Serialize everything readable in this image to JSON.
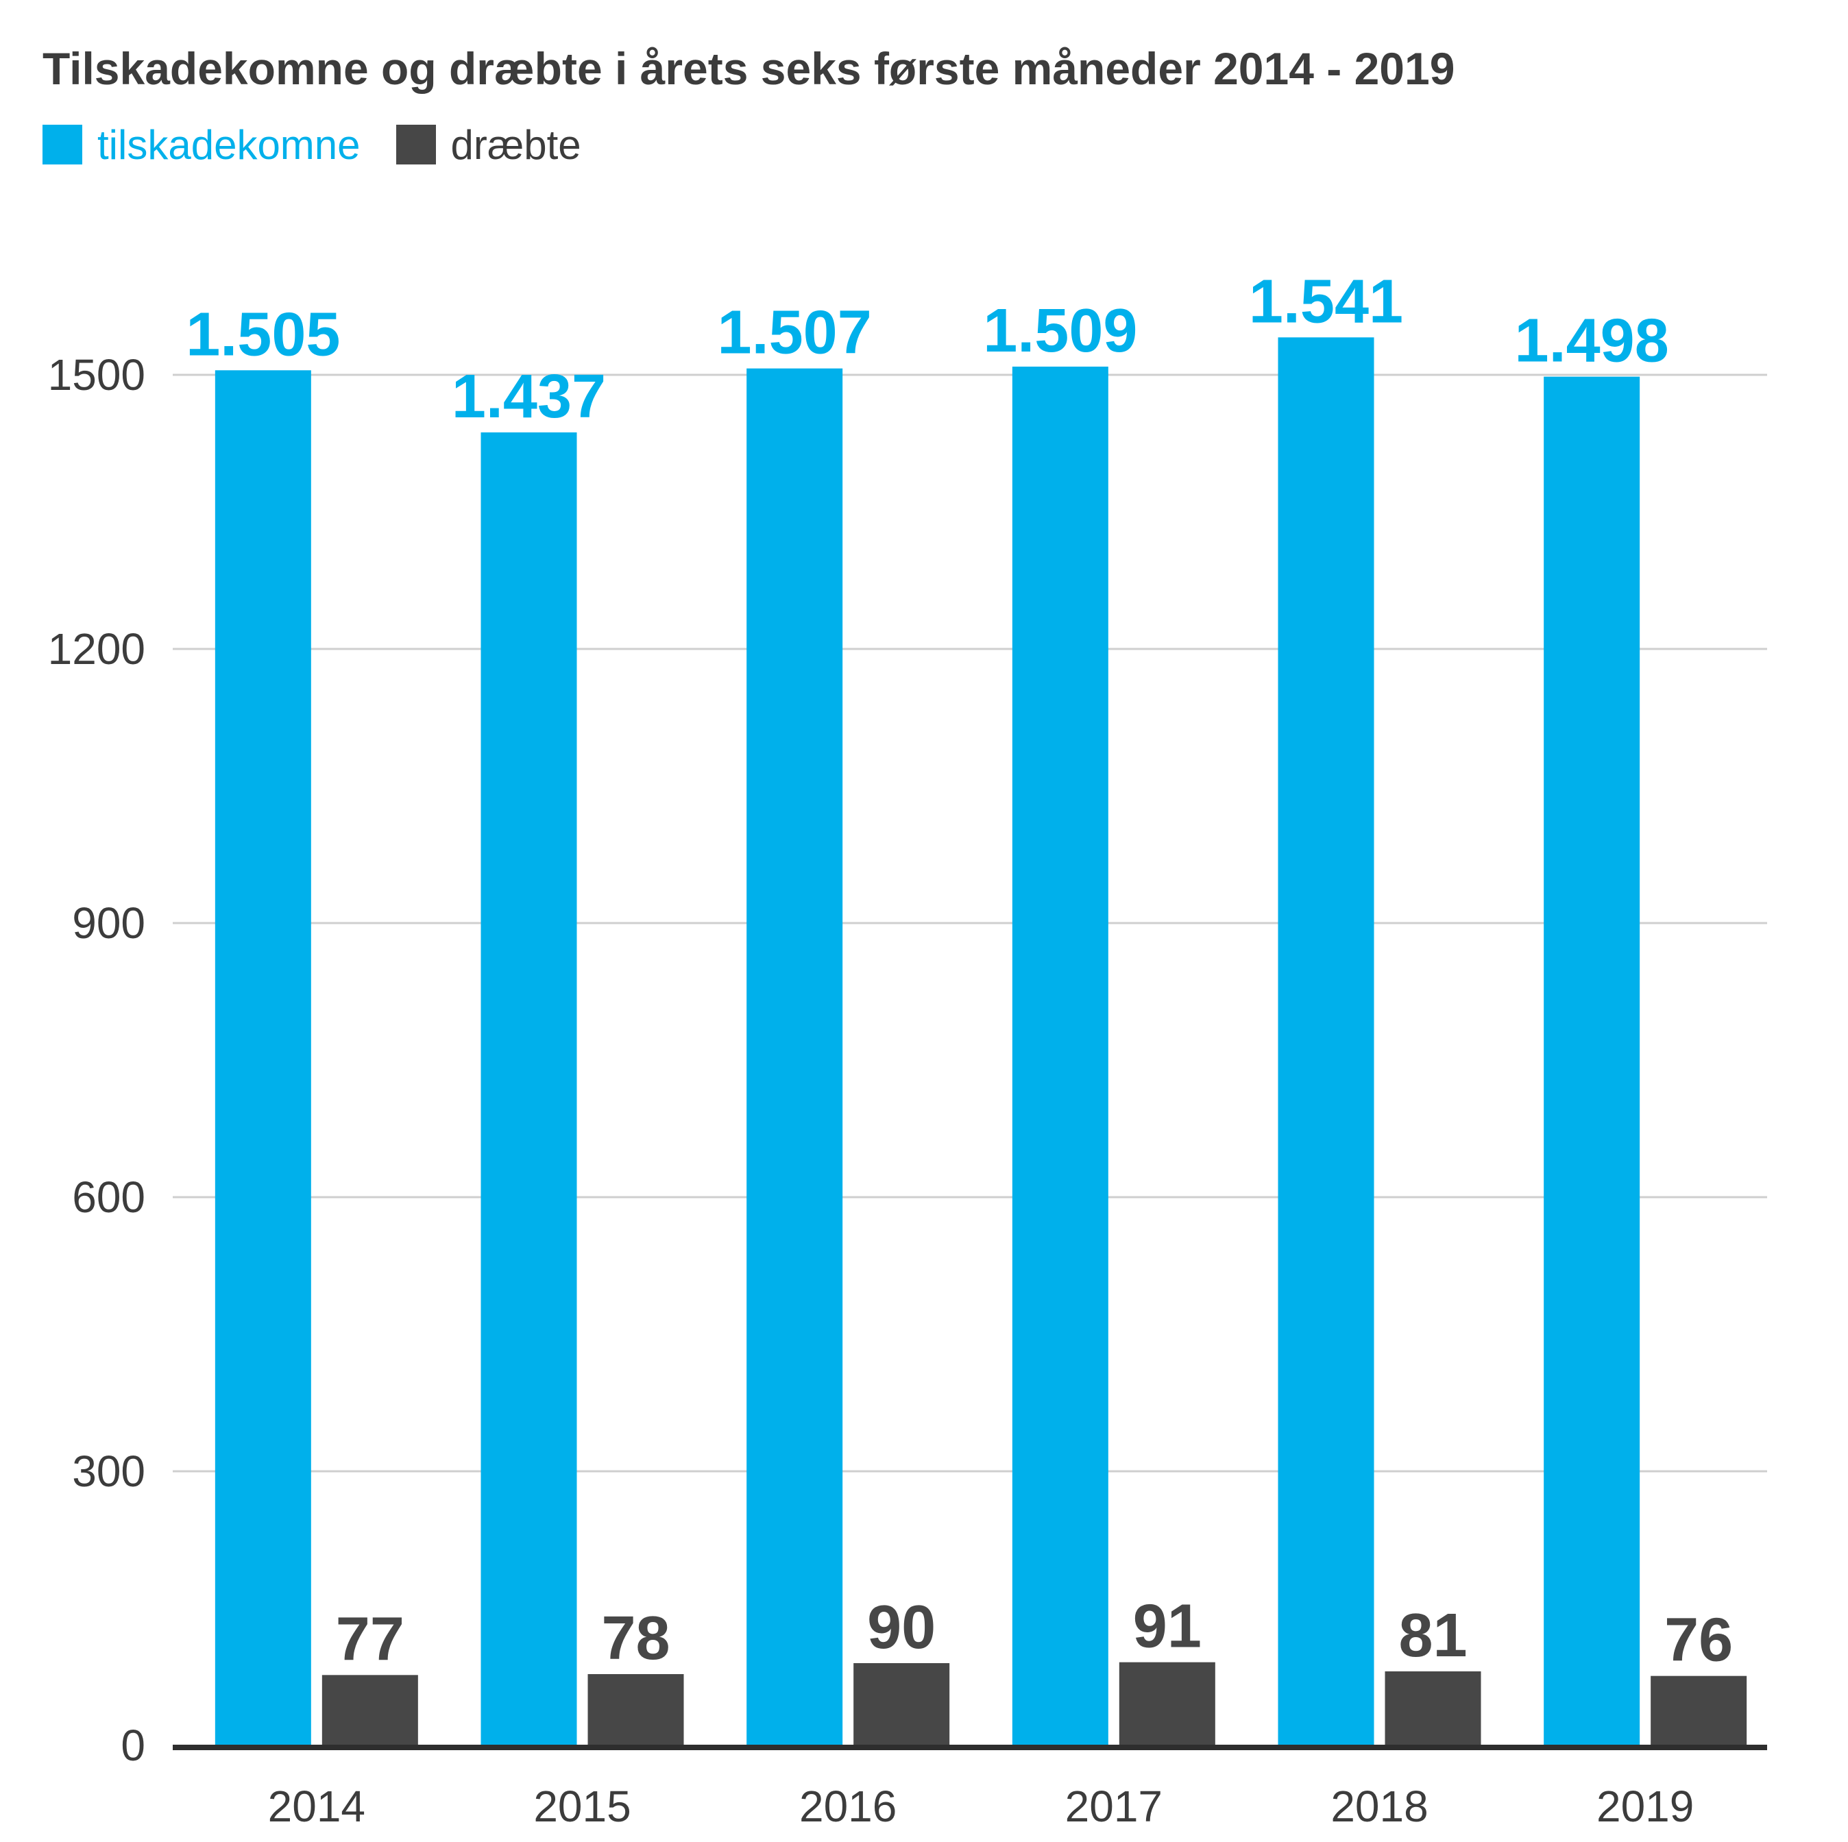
{
  "chart_data": {
    "type": "bar",
    "title": "Tilskadekomne og dræbte i årets seks første måneder 2014 - 2019",
    "categories": [
      "2014",
      "2015",
      "2016",
      "2017",
      "2018",
      "2019"
    ],
    "series": [
      {
        "name": "tilskadekomne",
        "color": "#00b0eb",
        "values": [
          1505,
          1437,
          1507,
          1509,
          1541,
          1498
        ],
        "labels": [
          "1.505",
          "1.437",
          "1.507",
          "1.509",
          "1.541",
          "1.498"
        ]
      },
      {
        "name": "dræbte",
        "color": "#474747",
        "values": [
          77,
          78,
          90,
          91,
          81,
          76
        ],
        "labels": [
          "77",
          "78",
          "90",
          "91",
          "81",
          "76"
        ]
      }
    ],
    "yticks": [
      "0",
      "300",
      "600",
      "900",
      "1200",
      "1500"
    ],
    "ylim": [
      0,
      1500
    ],
    "grid": true,
    "legend_position": "top-left",
    "xlabel": "",
    "ylabel": ""
  }
}
